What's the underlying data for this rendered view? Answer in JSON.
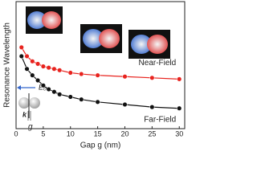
{
  "chart_data": {
    "type": "line",
    "x_label": "Gap g (nm)",
    "y_label": "Resonance Wavelength",
    "x": [
      1,
      2,
      3,
      4,
      5,
      6,
      7,
      8,
      10,
      12,
      15,
      20,
      25,
      30
    ],
    "series": [
      {
        "name": "Near-Field",
        "color": "#e8231e",
        "values": [
          64,
          57,
          53,
          51,
          49,
          48,
          47,
          46,
          44,
          43,
          42,
          41,
          40,
          39
        ]
      },
      {
        "name": "Far-Field",
        "color": "#111111",
        "values": [
          57,
          47,
          42,
          38,
          34,
          31,
          29,
          27,
          25,
          23,
          21,
          19,
          17,
          16
        ]
      }
    ],
    "xlim": [
      0,
      31
    ],
    "xticks": [
      0,
      5,
      10,
      15,
      20,
      25,
      30
    ],
    "ylim": [
      0,
      100
    ],
    "annotations": {
      "field": "E₀",
      "wavevector": "k",
      "gap": "g"
    }
  }
}
